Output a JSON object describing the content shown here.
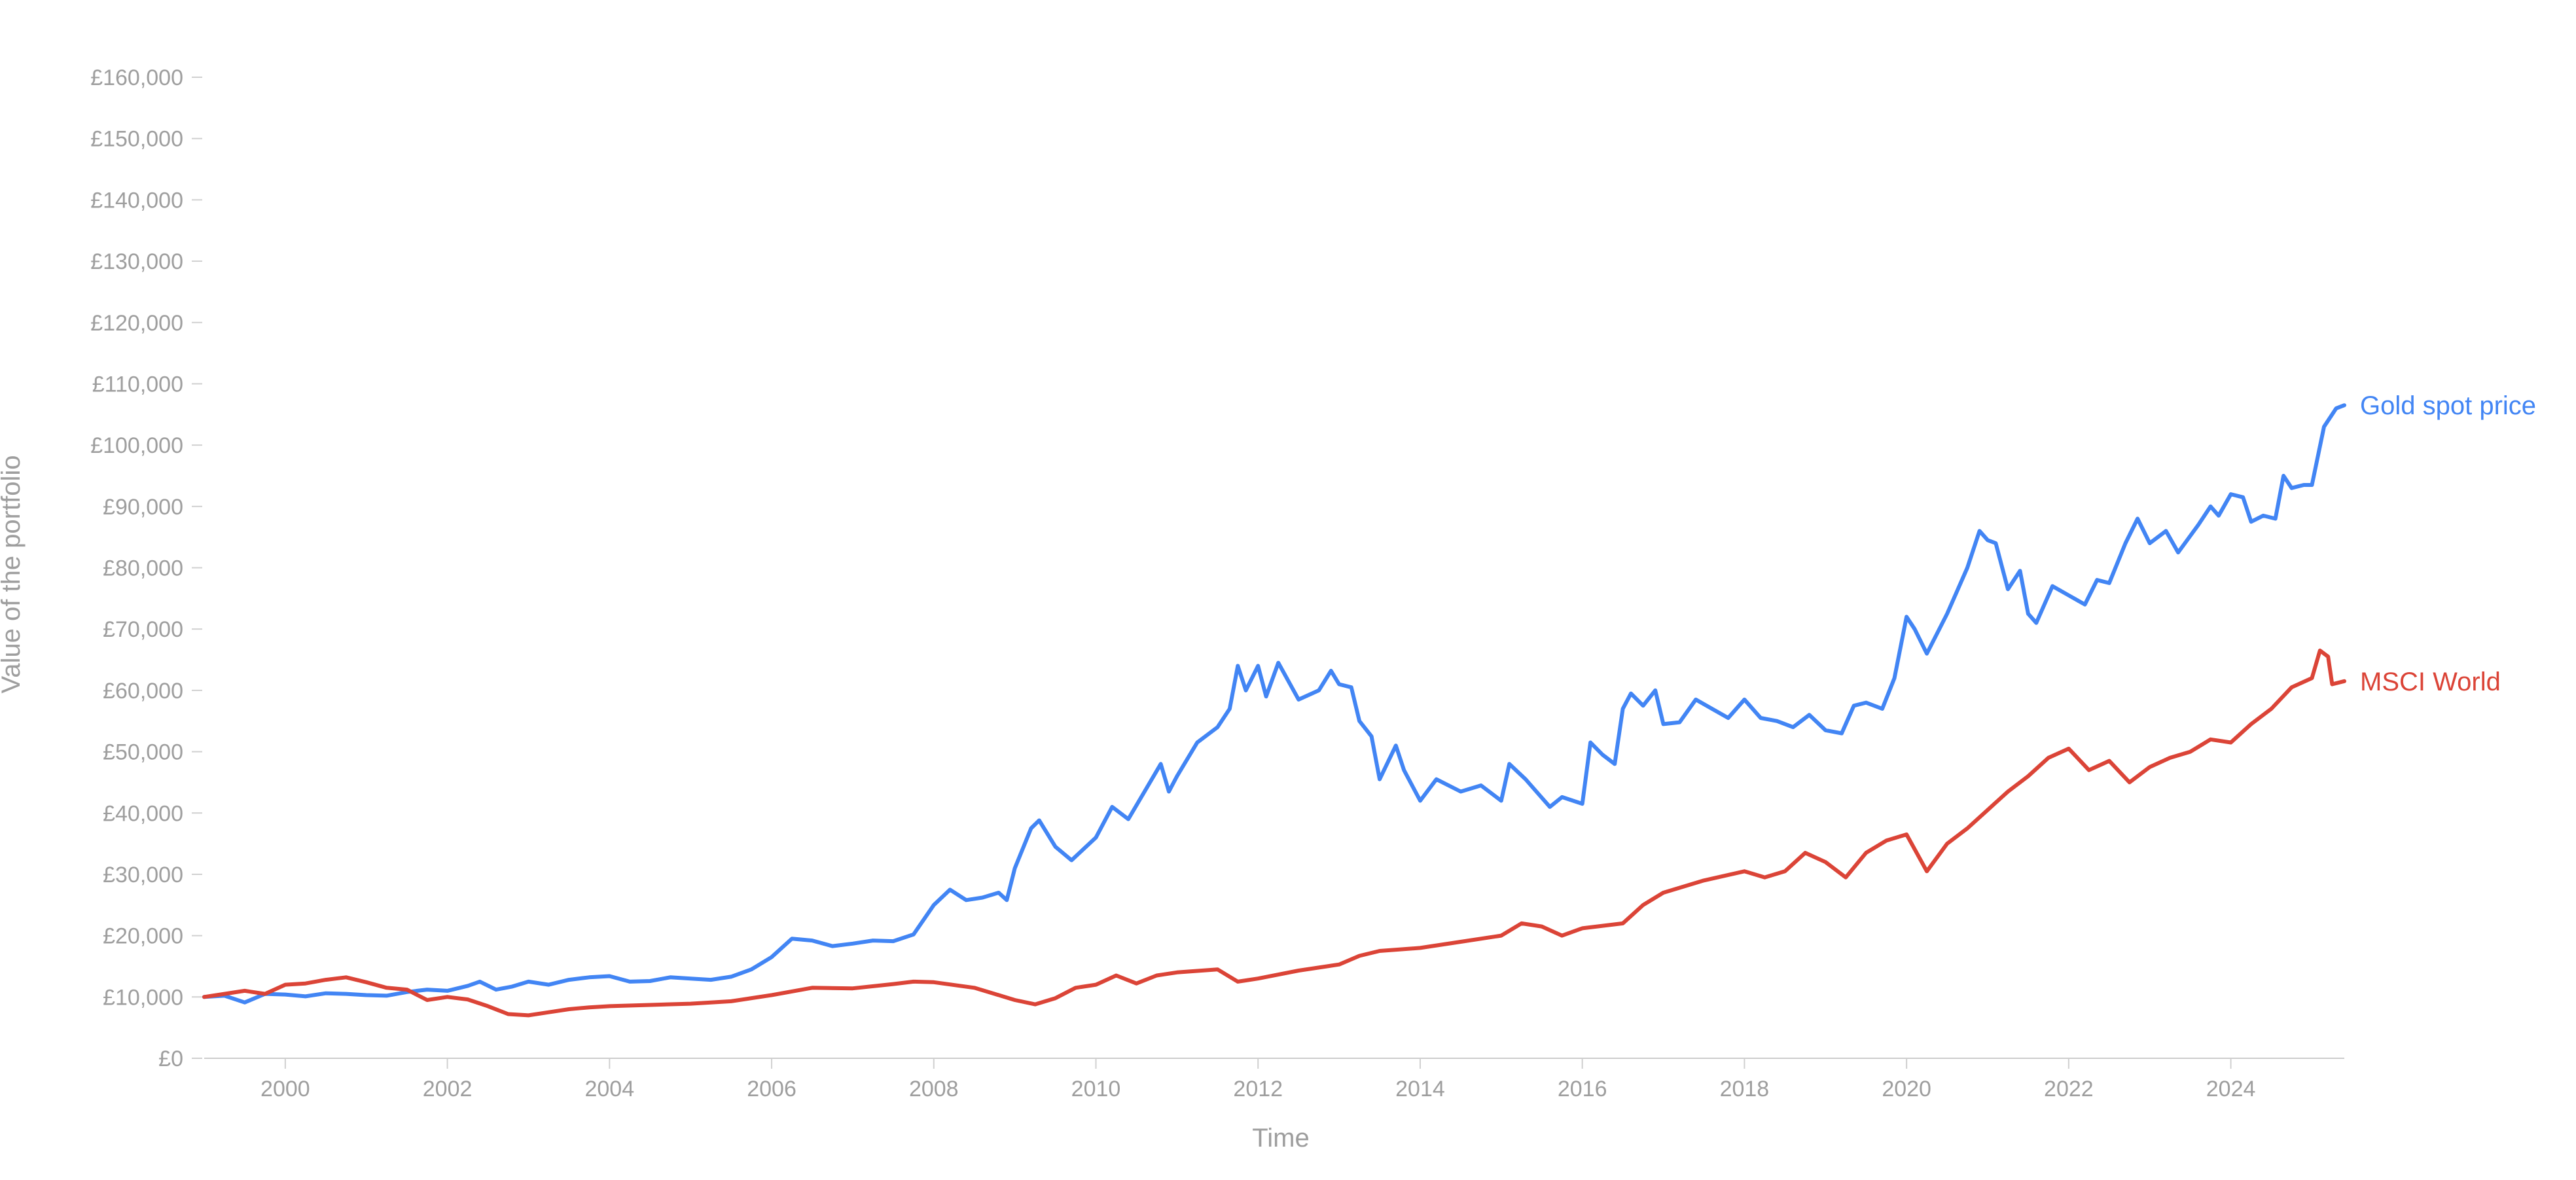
{
  "chart_data": {
    "type": "line",
    "xlabel": "Time",
    "ylabel": "Value of the portfolio",
    "xlim": [
      1999.0,
      2025.4
    ],
    "ylim": [
      0,
      160000
    ],
    "x_ticks": [
      2000,
      2002,
      2004,
      2006,
      2008,
      2010,
      2012,
      2014,
      2016,
      2018,
      2020,
      2022,
      2024
    ],
    "x_tick_labels": [
      "2000",
      "2002",
      "2004",
      "2006",
      "2008",
      "2010",
      "2012",
      "2014",
      "2016",
      "2018",
      "2020",
      "2022",
      "2024"
    ],
    "y_ticks": [
      0,
      10000,
      20000,
      30000,
      40000,
      50000,
      60000,
      70000,
      80000,
      90000,
      100000,
      110000,
      120000,
      130000,
      140000,
      150000,
      160000
    ],
    "y_tick_labels": [
      "£0",
      "£10,000",
      "£20,000",
      "£30,000",
      "£40,000",
      "£50,000",
      "£60,000",
      "£70,000",
      "£80,000",
      "£90,000",
      "£100,000",
      "£110,000",
      "£120,000",
      "£130,000",
      "£140,000",
      "£150,000",
      "£160,000"
    ],
    "grid": false,
    "legend": "end-of-line labels",
    "series": [
      {
        "name": "Gold spot price",
        "color": "#4285f4",
        "points": [
          [
            1999.0,
            10000
          ],
          [
            1999.25,
            10200
          ],
          [
            1999.5,
            9100
          ],
          [
            1999.75,
            10500
          ],
          [
            2000.0,
            10400
          ],
          [
            2000.25,
            10100
          ],
          [
            2000.5,
            10600
          ],
          [
            2000.75,
            10500
          ],
          [
            2001.0,
            10300
          ],
          [
            2001.25,
            10200
          ],
          [
            2001.5,
            10800
          ],
          [
            2001.75,
            11200
          ],
          [
            2002.0,
            11000
          ],
          [
            2002.25,
            11800
          ],
          [
            2002.4,
            12500
          ],
          [
            2002.6,
            11200
          ],
          [
            2002.8,
            11700
          ],
          [
            2003.0,
            12500
          ],
          [
            2003.25,
            12000
          ],
          [
            2003.5,
            12800
          ],
          [
            2003.75,
            13200
          ],
          [
            2004.0,
            13400
          ],
          [
            2004.25,
            12500
          ],
          [
            2004.5,
            12600
          ],
          [
            2004.75,
            13200
          ],
          [
            2005.0,
            13000
          ],
          [
            2005.25,
            12800
          ],
          [
            2005.5,
            13300
          ],
          [
            2005.75,
            14500
          ],
          [
            2006.0,
            16500
          ],
          [
            2006.25,
            19500
          ],
          [
            2006.5,
            19200
          ],
          [
            2006.75,
            18300
          ],
          [
            2007.0,
            18700
          ],
          [
            2007.25,
            19200
          ],
          [
            2007.5,
            19100
          ],
          [
            2007.75,
            20200
          ],
          [
            2008.0,
            25000
          ],
          [
            2008.2,
            27500
          ],
          [
            2008.4,
            25800
          ],
          [
            2008.6,
            26200
          ],
          [
            2008.8,
            27000
          ],
          [
            2008.9,
            25800
          ],
          [
            2009.0,
            31000
          ],
          [
            2009.2,
            37500
          ],
          [
            2009.3,
            38800
          ],
          [
            2009.5,
            34500
          ],
          [
            2009.7,
            32300
          ],
          [
            2010.0,
            36000
          ],
          [
            2010.2,
            41000
          ],
          [
            2010.4,
            39000
          ],
          [
            2010.6,
            43500
          ],
          [
            2010.8,
            48000
          ],
          [
            2010.9,
            43500
          ],
          [
            2011.0,
            46000
          ],
          [
            2011.25,
            51500
          ],
          [
            2011.5,
            54000
          ],
          [
            2011.65,
            57000
          ],
          [
            2011.75,
            64000
          ],
          [
            2011.85,
            60000
          ],
          [
            2012.0,
            64000
          ],
          [
            2012.1,
            59000
          ],
          [
            2012.25,
            64500
          ],
          [
            2012.5,
            58500
          ],
          [
            2012.75,
            60000
          ],
          [
            2012.9,
            63200
          ],
          [
            2013.0,
            61000
          ],
          [
            2013.15,
            60500
          ],
          [
            2013.25,
            55000
          ],
          [
            2013.4,
            52500
          ],
          [
            2013.5,
            45500
          ],
          [
            2013.7,
            51000
          ],
          [
            2013.8,
            47000
          ],
          [
            2014.0,
            42000
          ],
          [
            2014.2,
            45500
          ],
          [
            2014.5,
            43500
          ],
          [
            2014.75,
            44500
          ],
          [
            2015.0,
            42000
          ],
          [
            2015.1,
            48000
          ],
          [
            2015.3,
            45500
          ],
          [
            2015.5,
            42500
          ],
          [
            2015.6,
            41000
          ],
          [
            2015.75,
            42600
          ],
          [
            2016.0,
            41500
          ],
          [
            2016.1,
            51500
          ],
          [
            2016.25,
            49500
          ],
          [
            2016.4,
            48000
          ],
          [
            2016.5,
            57000
          ],
          [
            2016.6,
            59500
          ],
          [
            2016.75,
            57500
          ],
          [
            2016.9,
            60000
          ],
          [
            2017.0,
            54500
          ],
          [
            2017.2,
            54800
          ],
          [
            2017.4,
            58500
          ],
          [
            2017.6,
            57000
          ],
          [
            2017.8,
            55500
          ],
          [
            2018.0,
            58500
          ],
          [
            2018.2,
            55500
          ],
          [
            2018.4,
            55000
          ],
          [
            2018.6,
            54000
          ],
          [
            2018.8,
            56000
          ],
          [
            2019.0,
            53500
          ],
          [
            2019.2,
            53000
          ],
          [
            2019.35,
            57500
          ],
          [
            2019.5,
            58000
          ],
          [
            2019.7,
            57000
          ],
          [
            2019.85,
            62000
          ],
          [
            2020.0,
            72000
          ],
          [
            2020.1,
            70000
          ],
          [
            2020.25,
            66000
          ],
          [
            2020.5,
            72500
          ],
          [
            2020.75,
            80000
          ],
          [
            2020.9,
            86000
          ],
          [
            2021.0,
            84500
          ],
          [
            2021.1,
            84000
          ],
          [
            2021.25,
            76500
          ],
          [
            2021.4,
            79500
          ],
          [
            2021.5,
            72500
          ],
          [
            2021.6,
            71000
          ],
          [
            2021.8,
            77000
          ],
          [
            2022.0,
            75500
          ],
          [
            2022.2,
            74000
          ],
          [
            2022.35,
            78000
          ],
          [
            2022.5,
            77500
          ],
          [
            2022.7,
            84000
          ],
          [
            2022.85,
            88000
          ],
          [
            2023.0,
            84000
          ],
          [
            2023.2,
            86000
          ],
          [
            2023.35,
            82500
          ],
          [
            2023.6,
            87000
          ],
          [
            2023.75,
            90000
          ],
          [
            2023.85,
            88500
          ],
          [
            2024.0,
            92000
          ],
          [
            2024.15,
            91500
          ],
          [
            2024.25,
            87500
          ],
          [
            2024.4,
            88500
          ],
          [
            2024.55,
            88000
          ],
          [
            2024.65,
            95000
          ],
          [
            2024.75,
            93000
          ],
          [
            2024.9,
            93500
          ],
          [
            2025.0,
            93500
          ],
          [
            2025.15,
            103000
          ],
          [
            2025.3,
            106000
          ],
          [
            2025.4,
            106500
          ]
        ]
      },
      {
        "name": "MSCI World",
        "color": "#db4437",
        "points": [
          [
            1999.0,
            10000
          ],
          [
            1999.25,
            10500
          ],
          [
            1999.5,
            11000
          ],
          [
            1999.75,
            10500
          ],
          [
            2000.0,
            12000
          ],
          [
            2000.25,
            12200
          ],
          [
            2000.5,
            12800
          ],
          [
            2000.75,
            13200
          ],
          [
            2001.0,
            12400
          ],
          [
            2001.25,
            11500
          ],
          [
            2001.5,
            11200
          ],
          [
            2001.75,
            9500
          ],
          [
            2002.0,
            10000
          ],
          [
            2002.25,
            9600
          ],
          [
            2002.5,
            8500
          ],
          [
            2002.75,
            7200
          ],
          [
            2003.0,
            7000
          ],
          [
            2003.25,
            7500
          ],
          [
            2003.5,
            8000
          ],
          [
            2003.75,
            8300
          ],
          [
            2004.0,
            8500
          ],
          [
            2004.5,
            8700
          ],
          [
            2005.0,
            8900
          ],
          [
            2005.5,
            9300
          ],
          [
            2006.0,
            10300
          ],
          [
            2006.5,
            11500
          ],
          [
            2007.0,
            11400
          ],
          [
            2007.5,
            12100
          ],
          [
            2007.75,
            12500
          ],
          [
            2008.0,
            12400
          ],
          [
            2008.5,
            11500
          ],
          [
            2008.75,
            10500
          ],
          [
            2009.0,
            9500
          ],
          [
            2009.25,
            8800
          ],
          [
            2009.5,
            9800
          ],
          [
            2009.75,
            11500
          ],
          [
            2010.0,
            12000
          ],
          [
            2010.25,
            13500
          ],
          [
            2010.5,
            12200
          ],
          [
            2010.75,
            13500
          ],
          [
            2011.0,
            14000
          ],
          [
            2011.5,
            14500
          ],
          [
            2011.75,
            12500
          ],
          [
            2012.0,
            13000
          ],
          [
            2012.5,
            14300
          ],
          [
            2013.0,
            15300
          ],
          [
            2013.25,
            16700
          ],
          [
            2013.5,
            17500
          ],
          [
            2014.0,
            18000
          ],
          [
            2014.5,
            19000
          ],
          [
            2015.0,
            20000
          ],
          [
            2015.25,
            22000
          ],
          [
            2015.5,
            21500
          ],
          [
            2015.75,
            20000
          ],
          [
            2016.0,
            21200
          ],
          [
            2016.5,
            22000
          ],
          [
            2016.75,
            25000
          ],
          [
            2017.0,
            27000
          ],
          [
            2017.5,
            29000
          ],
          [
            2018.0,
            30500
          ],
          [
            2018.25,
            29500
          ],
          [
            2018.5,
            30500
          ],
          [
            2018.75,
            33500
          ],
          [
            2019.0,
            32000
          ],
          [
            2019.25,
            29500
          ],
          [
            2019.5,
            33500
          ],
          [
            2019.75,
            35500
          ],
          [
            2020.0,
            36500
          ],
          [
            2020.25,
            30500
          ],
          [
            2020.5,
            35000
          ],
          [
            2020.75,
            37500
          ],
          [
            2021.0,
            40500
          ],
          [
            2021.25,
            43500
          ],
          [
            2021.5,
            46000
          ],
          [
            2021.75,
            49000
          ],
          [
            2022.0,
            50500
          ],
          [
            2022.25,
            47000
          ],
          [
            2022.5,
            48500
          ],
          [
            2022.75,
            45000
          ],
          [
            2023.0,
            47500
          ],
          [
            2023.25,
            49000
          ],
          [
            2023.5,
            50000
          ],
          [
            2023.75,
            52000
          ],
          [
            2024.0,
            51500
          ],
          [
            2024.25,
            54500
          ],
          [
            2024.5,
            57000
          ],
          [
            2024.75,
            60500
          ],
          [
            2025.0,
            62000
          ],
          [
            2025.1,
            66500
          ],
          [
            2025.2,
            65500
          ],
          [
            2025.25,
            61000
          ],
          [
            2025.4,
            61500
          ]
        ]
      }
    ]
  }
}
